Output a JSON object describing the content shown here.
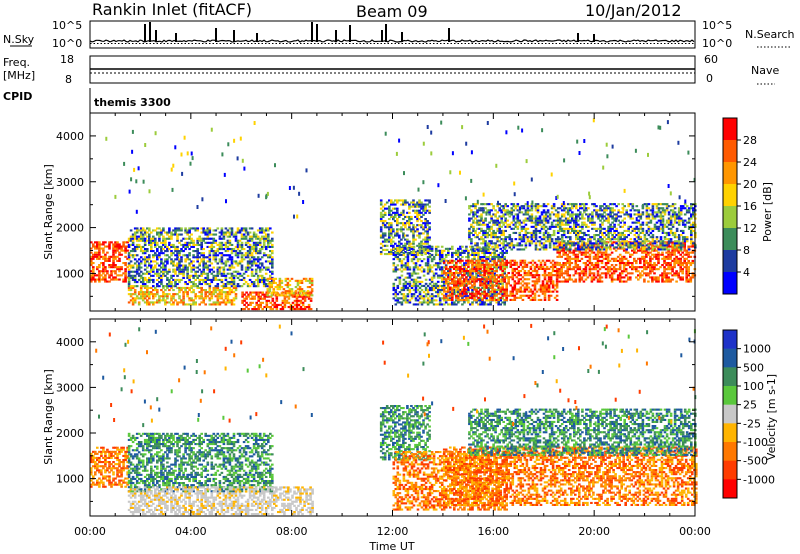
{
  "header": {
    "station": "Rankin Inlet (fitACF)",
    "beam": "Beam 09",
    "date": "10/Jan/2012"
  },
  "small_panels": {
    "nsky_label": "N.Sky",
    "nsky_ticks": [
      "10^5",
      "10^0"
    ],
    "nsearch_label": "N.Search",
    "nsearch_ticks": [
      "10^5",
      "10^0"
    ],
    "freq_label": "Freq.",
    "freq_unit": "[MHz]",
    "freq_ticks": [
      "18",
      "8"
    ],
    "nave_label": "Nave",
    "nave_ticks": [
      "60",
      "0"
    ],
    "cpid_label": "CPID",
    "cpid_value": "themis 3300"
  },
  "chart_data": [
    {
      "type": "heatmap",
      "name": "power",
      "ylabel": "Slant Range [km]",
      "xlabel": "Time UT",
      "xlim_hours": [
        0,
        24
      ],
      "ylim_km": [
        180,
        4500
      ],
      "x_ticks": [
        "00:00",
        "04:00",
        "08:00",
        "12:00",
        "16:00",
        "20:00",
        "00:00"
      ],
      "y_ticks": [
        1000,
        2000,
        3000,
        4000
      ],
      "colorbar": {
        "label": "Power [dB]",
        "ticks": [
          "28",
          "24",
          "20",
          "16",
          "12",
          "8",
          "4"
        ],
        "colors": [
          "#ff0000",
          "#ff5a00",
          "#ff9600",
          "#ffd200",
          "#9ccc3c",
          "#3c8c5a",
          "#1e3ca0",
          "#0000ff"
        ]
      },
      "echo_regions": [
        {
          "t": [
            0.0,
            1.5
          ],
          "r": [
            800,
            1700
          ],
          "level": "high"
        },
        {
          "t": [
            1.5,
            5.8
          ],
          "r": [
            300,
            700
          ],
          "level": "medium"
        },
        {
          "t": [
            1.5,
            7.2
          ],
          "r": [
            700,
            2000
          ],
          "level": "low"
        },
        {
          "t": [
            6.0,
            8.8
          ],
          "r": [
            200,
            600
          ],
          "level": "high"
        },
        {
          "t": [
            7.0,
            8.8
          ],
          "r": [
            500,
            900
          ],
          "level": "medium"
        },
        {
          "t": [
            11.5,
            13.5
          ],
          "r": [
            1400,
            2600
          ],
          "level": "low"
        },
        {
          "t": [
            12.0,
            16.5
          ],
          "r": [
            300,
            1600
          ],
          "level": "low"
        },
        {
          "t": [
            14.0,
            18.5
          ],
          "r": [
            400,
            1300
          ],
          "level": "high"
        },
        {
          "t": [
            18.5,
            24.0
          ],
          "r": [
            800,
            1700
          ],
          "level": "high"
        },
        {
          "t": [
            15.0,
            24.0
          ],
          "r": [
            1500,
            2500
          ],
          "level": "low"
        }
      ]
    },
    {
      "type": "heatmap",
      "name": "velocity",
      "ylabel": "Slant Range [km]",
      "xlabel": "Time UT",
      "xlim_hours": [
        0,
        24
      ],
      "ylim_km": [
        180,
        4500
      ],
      "x_ticks": [
        "00:00",
        "04:00",
        "08:00",
        "12:00",
        "16:00",
        "20:00",
        "00:00"
      ],
      "y_ticks": [
        1000,
        2000,
        3000,
        4000
      ],
      "colorbar": {
        "label": "Velocity [m s-1]",
        "ticks": [
          "1000",
          "500",
          "100",
          "25",
          "-25",
          "-100",
          "-500",
          "-1000"
        ],
        "colors": [
          "#1e32c8",
          "#1e5aa0",
          "#3c8c5a",
          "#5ac83c",
          "#c8c8c8",
          "#ffb400",
          "#ff7800",
          "#ff3c00",
          "#ff0000"
        ]
      },
      "echo_regions": [
        {
          "t": [
            0.0,
            1.5
          ],
          "r": [
            800,
            1700
          ],
          "level": "neg"
        },
        {
          "t": [
            1.5,
            7.2
          ],
          "r": [
            700,
            2000
          ],
          "level": "pos"
        },
        {
          "t": [
            1.5,
            8.8
          ],
          "r": [
            200,
            800
          ],
          "level": "zero"
        },
        {
          "t": [
            11.5,
            13.5
          ],
          "r": [
            1400,
            2600
          ],
          "level": "pos"
        },
        {
          "t": [
            12.0,
            16.5
          ],
          "r": [
            300,
            1600
          ],
          "level": "neg"
        },
        {
          "t": [
            14.0,
            24.0
          ],
          "r": [
            400,
            1700
          ],
          "level": "neg"
        },
        {
          "t": [
            15.0,
            24.0
          ],
          "r": [
            1500,
            2500
          ],
          "level": "pos"
        }
      ]
    }
  ]
}
